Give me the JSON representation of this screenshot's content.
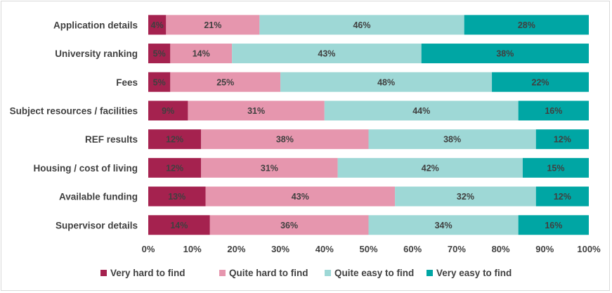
{
  "chart_data": {
    "type": "bar",
    "orientation": "horizontal",
    "stacked": true,
    "percent_stacked": true,
    "categories": [
      "Application details",
      "University ranking",
      "Fees",
      "Subject resources / facilities",
      "REF results",
      "Housing / cost of living",
      "Available funding",
      "Supervisor details"
    ],
    "series": [
      {
        "name": "Very hard to find",
        "color": "#A5224F",
        "values": [
          4,
          5,
          5,
          9,
          12,
          12,
          13,
          14
        ]
      },
      {
        "name": "Quite hard to find",
        "color": "#E696AE",
        "values": [
          21,
          14,
          25,
          31,
          38,
          31,
          43,
          36
        ]
      },
      {
        "name": "Quite easy to find",
        "color": "#9ED8D6",
        "values": [
          46,
          43,
          48,
          44,
          38,
          42,
          32,
          34
        ]
      },
      {
        "name": "Very easy to find",
        "color": "#00A6A4",
        "values": [
          28,
          38,
          22,
          16,
          12,
          15,
          12,
          16
        ]
      }
    ],
    "data_labels": [
      [
        "4%",
        "21%",
        "46%",
        "28%"
      ],
      [
        "5%",
        "14%",
        "43%",
        "38%"
      ],
      [
        "5%",
        "25%",
        "48%",
        "22%"
      ],
      [
        "9%",
        "31%",
        "44%",
        "16%"
      ],
      [
        "12%",
        "38%",
        "38%",
        "12%"
      ],
      [
        "12%",
        "31%",
        "42%",
        "15%"
      ],
      [
        "13%",
        "43%",
        "32%",
        "12%"
      ],
      [
        "14%",
        "36%",
        "34%",
        "16%"
      ]
    ],
    "xlim": [
      0,
      100
    ],
    "x_ticks": [
      "0%",
      "10%",
      "20%",
      "30%",
      "40%",
      "50%",
      "60%",
      "70%",
      "80%",
      "90%",
      "100%"
    ],
    "grid": false,
    "legend_position": "bottom",
    "title": "",
    "xlabel": "",
    "ylabel": ""
  }
}
